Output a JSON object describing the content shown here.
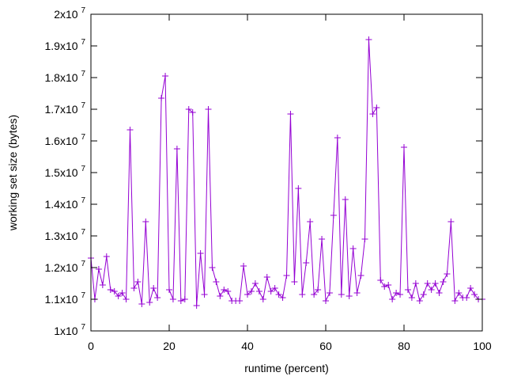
{
  "chart_data": {
    "type": "line",
    "title": "",
    "xlabel": "runtime (percent)",
    "ylabel": "working set size (bytes)",
    "xlim": [
      0,
      100
    ],
    "ylim": [
      10000000,
      20000000
    ],
    "grid": false,
    "legend": "none",
    "line_color": "#9400d3",
    "marker": "plus",
    "x_ticks": [
      0,
      20,
      40,
      60,
      80,
      100
    ],
    "y_ticks": [
      {
        "value": 10000000,
        "mantissa": "1x10",
        "exp": "7"
      },
      {
        "value": 11000000,
        "mantissa": "1.1x10",
        "exp": "7"
      },
      {
        "value": 12000000,
        "mantissa": "1.2x10",
        "exp": "7"
      },
      {
        "value": 13000000,
        "mantissa": "1.3x10",
        "exp": "7"
      },
      {
        "value": 14000000,
        "mantissa": "1.4x10",
        "exp": "7"
      },
      {
        "value": 15000000,
        "mantissa": "1.5x10",
        "exp": "7"
      },
      {
        "value": 16000000,
        "mantissa": "1.6x10",
        "exp": "7"
      },
      {
        "value": 17000000,
        "mantissa": "1.7x10",
        "exp": "7"
      },
      {
        "value": 18000000,
        "mantissa": "1.8x10",
        "exp": "7"
      },
      {
        "value": 19000000,
        "mantissa": "1.9x10",
        "exp": "7"
      },
      {
        "value": 20000000,
        "mantissa": "2x10",
        "exp": "7"
      }
    ],
    "series": [
      {
        "x": [
          0,
          1,
          2,
          3,
          4,
          5,
          6,
          7,
          8,
          9,
          10,
          11,
          12,
          13,
          14,
          15,
          16,
          17,
          18,
          19,
          20,
          21,
          22,
          23,
          24,
          25,
          26,
          27,
          28,
          29,
          30,
          31,
          32,
          33,
          34,
          35,
          36,
          37,
          38,
          39,
          40,
          41,
          42,
          43,
          44,
          45,
          46,
          47,
          48,
          49,
          50,
          51,
          52,
          53,
          54,
          55,
          56,
          57,
          58,
          59,
          60,
          61,
          62,
          63,
          64,
          65,
          66,
          67,
          68,
          69,
          70,
          71,
          72,
          73,
          74,
          75,
          76,
          77,
          78,
          79,
          80,
          81,
          82,
          83,
          84,
          85,
          86,
          87,
          88,
          89,
          90,
          91,
          92,
          93,
          94,
          95,
          96,
          97,
          98,
          99,
          100
        ],
        "values": [
          12300000,
          11000000,
          11950000,
          11450000,
          12350000,
          11300000,
          11250000,
          11100000,
          11200000,
          11000000,
          16350000,
          11350000,
          11550000,
          10850000,
          13450000,
          10900000,
          11350000,
          11050000,
          17350000,
          18050000,
          11300000,
          11000000,
          15750000,
          10950000,
          11000000,
          17000000,
          16900000,
          10800000,
          12450000,
          11150000,
          17000000,
          12000000,
          11550000,
          11100000,
          11300000,
          11250000,
          10950000,
          10950000,
          10950000,
          12050000,
          11150000,
          11250000,
          11500000,
          11250000,
          11000000,
          11700000,
          11250000,
          11350000,
          11150000,
          11050000,
          11750000,
          16850000,
          11550000,
          14500000,
          11150000,
          12150000,
          13450000,
          11150000,
          11300000,
          12900000,
          10950000,
          11200000,
          13650000,
          16100000,
          11150000,
          14150000,
          11100000,
          12600000,
          11200000,
          11750000,
          12900000,
          19200000,
          16850000,
          17050000,
          11600000,
          11400000,
          11450000,
          11000000,
          11200000,
          11150000,
          15800000,
          11300000,
          11050000,
          11500000,
          10950000,
          11150000,
          11500000,
          11300000,
          11500000,
          11200000,
          11550000,
          11800000,
          13450000,
          10950000,
          11200000,
          11050000,
          11050000,
          11350000,
          11150000,
          11000000,
          11000000
        ]
      }
    ]
  }
}
